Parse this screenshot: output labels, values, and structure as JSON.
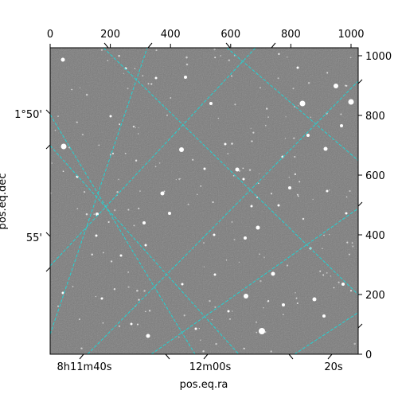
{
  "image": {
    "axis_titles": {
      "bottom": "pos.eq.ra",
      "left": "pos.eq.dec"
    },
    "pixel_axis": {
      "top_ticks": [
        "0",
        "200",
        "400",
        "600",
        "800",
        "1000"
      ],
      "right_ticks": [
        "0",
        "200",
        "400",
        "600",
        "800",
        "1000"
      ],
      "range": [
        0,
        1024
      ]
    },
    "world_axis": {
      "ra_ticks": [
        "8h11m40s",
        "12m00s",
        "20s"
      ],
      "dec_ticks": [
        "1°50'",
        "55'"
      ]
    },
    "grid_color": "#22d3d3",
    "background_color": "#7a7a7a"
  }
}
